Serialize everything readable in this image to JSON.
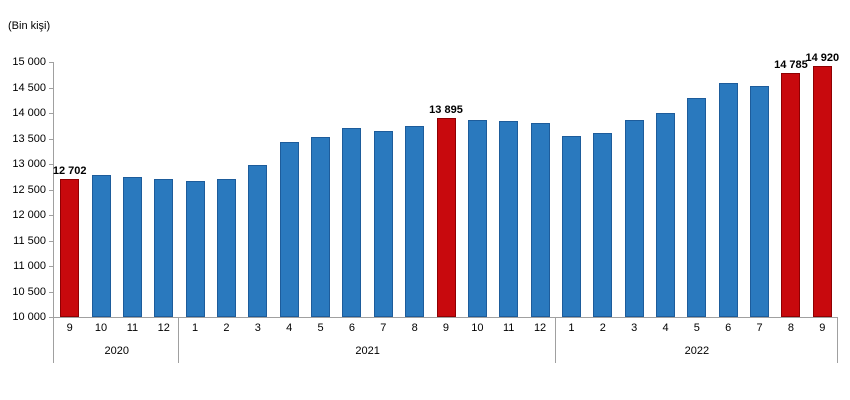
{
  "chart_data": {
    "type": "bar",
    "title": "",
    "unit_label": "(Bin kişi)",
    "xlabel": "",
    "ylabel": "Bin kişi",
    "ylim": [
      10000,
      15000
    ],
    "ytick_step": 500,
    "ytick_labels": [
      "15 000",
      "14 500",
      "14 000",
      "13 500",
      "13 000",
      "12 500",
      "12 000",
      "11 500",
      "11 000",
      "10 500",
      "10 000"
    ],
    "grid": "off",
    "legend": "none",
    "groups": [
      {
        "year": "2020",
        "bars": [
          {
            "month": "9",
            "value": 12702,
            "highlight": true,
            "label": "12 702"
          },
          {
            "month": "10",
            "value": 12790,
            "highlight": false,
            "label": ""
          },
          {
            "month": "11",
            "value": 12755,
            "highlight": false,
            "label": ""
          },
          {
            "month": "12",
            "value": 12715,
            "highlight": false,
            "label": ""
          }
        ]
      },
      {
        "year": "2021",
        "bars": [
          {
            "month": "1",
            "value": 12660,
            "highlight": false,
            "label": ""
          },
          {
            "month": "2",
            "value": 12700,
            "highlight": false,
            "label": ""
          },
          {
            "month": "3",
            "value": 12990,
            "highlight": false,
            "label": ""
          },
          {
            "month": "4",
            "value": 13435,
            "highlight": false,
            "label": ""
          },
          {
            "month": "5",
            "value": 13525,
            "highlight": false,
            "label": ""
          },
          {
            "month": "6",
            "value": 13715,
            "highlight": false,
            "label": ""
          },
          {
            "month": "7",
            "value": 13655,
            "highlight": false,
            "label": ""
          },
          {
            "month": "8",
            "value": 13745,
            "highlight": false,
            "label": ""
          },
          {
            "month": "9",
            "value": 13895,
            "highlight": true,
            "label": "13 895"
          },
          {
            "month": "10",
            "value": 13865,
            "highlight": false,
            "label": ""
          },
          {
            "month": "11",
            "value": 13850,
            "highlight": false,
            "label": ""
          },
          {
            "month": "12",
            "value": 13795,
            "highlight": false,
            "label": ""
          }
        ]
      },
      {
        "year": "2022",
        "bars": [
          {
            "month": "1",
            "value": 13550,
            "highlight": false,
            "label": ""
          },
          {
            "month": "2",
            "value": 13610,
            "highlight": false,
            "label": ""
          },
          {
            "month": "3",
            "value": 13855,
            "highlight": false,
            "label": ""
          },
          {
            "month": "4",
            "value": 14000,
            "highlight": false,
            "label": ""
          },
          {
            "month": "5",
            "value": 14295,
            "highlight": false,
            "label": ""
          },
          {
            "month": "6",
            "value": 14595,
            "highlight": false,
            "label": ""
          },
          {
            "month": "7",
            "value": 14520,
            "highlight": false,
            "label": ""
          },
          {
            "month": "8",
            "value": 14785,
            "highlight": true,
            "label": "14 785"
          },
          {
            "month": "9",
            "value": 14920,
            "highlight": true,
            "label": "14 920"
          }
        ]
      }
    ],
    "colors": {
      "bar_fill": "#2A79BE",
      "bar_border": "#1D5C9B",
      "highlight_fill": "#C8090D",
      "highlight_border": "#8F0002",
      "axis": "#A0A0A0",
      "text": "#000000"
    }
  }
}
